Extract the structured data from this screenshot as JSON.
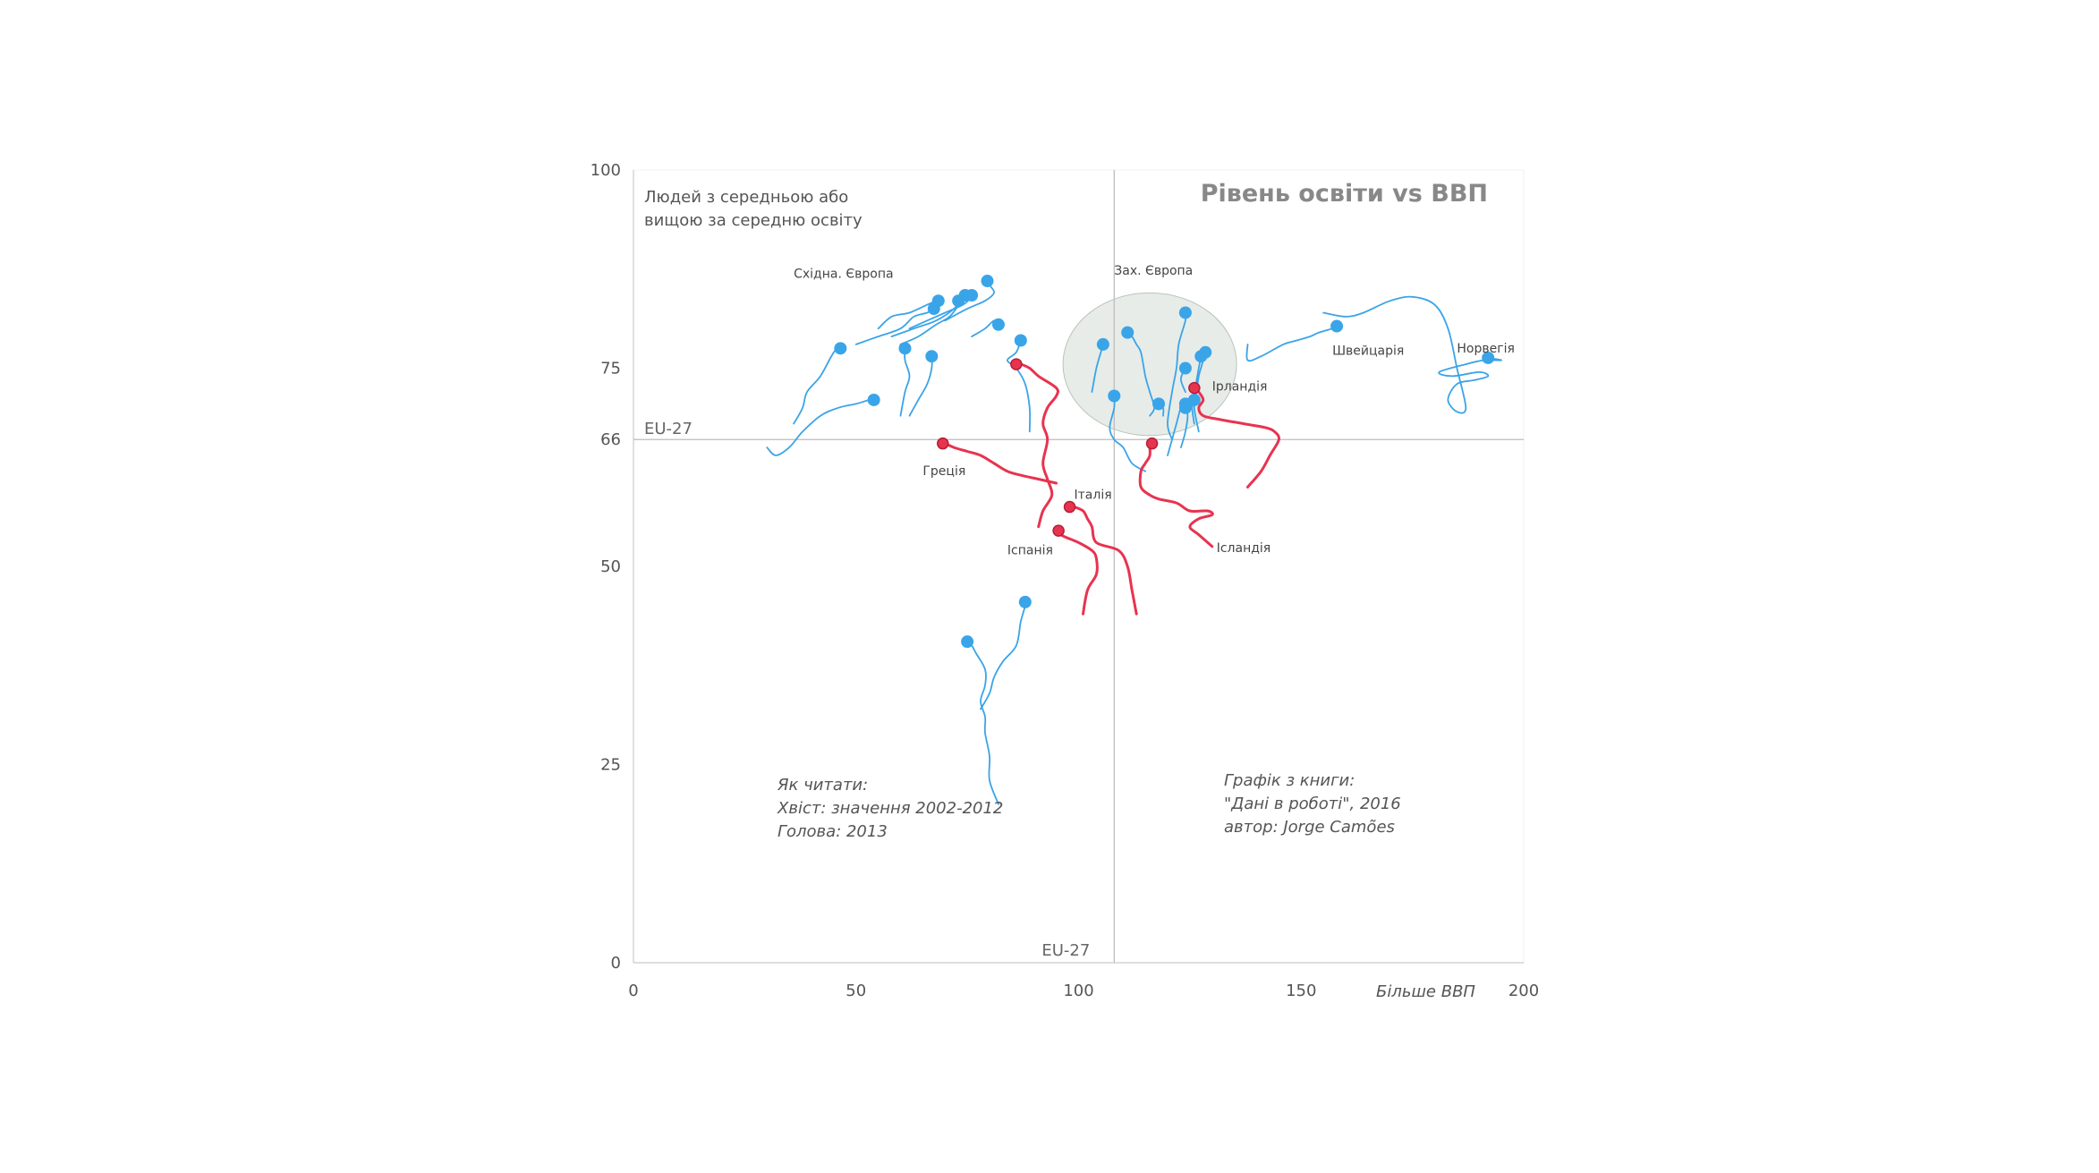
{
  "chart_data": {
    "type": "scatter",
    "title": "Рівень освіти vs ВВП",
    "ylabel_lines": [
      "Людей з  середньою або",
      "вищою за середню освіту"
    ],
    "xlabel": "Більше ВВП",
    "xlim": [
      0,
      200
    ],
    "ylim": [
      0,
      100
    ],
    "x_ticks": [
      0,
      50,
      100,
      150,
      200
    ],
    "y_ticks": [
      0,
      25,
      50,
      66,
      75,
      100
    ],
    "reference_lines": {
      "x": 108,
      "y": 66,
      "x_label": "EU-27",
      "y_label": "EU-27"
    },
    "grid": false,
    "colors": {
      "default": "#3aa4e8",
      "highlight": "#e8334f",
      "axis": "#cccccc",
      "cluster_fill": "#dfe6e0"
    },
    "cluster": {
      "label": "Зах. Європа",
      "center": [
        116,
        75.5
      ],
      "radius": [
        19.5,
        9
      ]
    },
    "region_labels": [
      {
        "text": "Східна. Європа",
        "x": 36,
        "y": 86.4
      },
      {
        "text": "Зах. Європа",
        "x": 108,
        "y": 86.8
      }
    ],
    "notes": {
      "reading": [
        "Як читати:",
        "Хвіст: значення 2002-2012",
        "Голова: 2013"
      ],
      "source": [
        "Графік з книги:",
        "\"Дані в роботі\", 2016",
        "автор: Jorge Camões"
      ]
    },
    "series": [
      {
        "name": "Греція",
        "highlight": true,
        "label_pos": [
          65,
          61.5
        ],
        "points": [
          [
            95,
            60.5
          ],
          [
            91,
            61
          ],
          [
            87,
            61.5
          ],
          [
            84,
            62
          ],
          [
            81,
            63
          ],
          [
            78,
            64
          ],
          [
            75,
            64.5
          ],
          [
            72,
            65
          ],
          [
            70,
            65.5
          ],
          [
            69.5,
            65.5
          ]
        ]
      },
      {
        "name": "Італія",
        "highlight": true,
        "label_pos": [
          99,
          58.5
        ],
        "points": [
          [
            91,
            55
          ],
          [
            92,
            57
          ],
          [
            94,
            59
          ],
          [
            93,
            61
          ],
          [
            92,
            63
          ],
          [
            93,
            66
          ],
          [
            92,
            68
          ],
          [
            93,
            70
          ],
          [
            95,
            71.5
          ],
          [
            95,
            72.5
          ],
          [
            91,
            74
          ],
          [
            89,
            75
          ],
          [
            87,
            75.5
          ],
          [
            86,
            75.5
          ]
        ]
      },
      {
        "name": "Іспанія",
        "highlight": true,
        "label_pos": [
          84,
          51.5
        ],
        "points": [
          [
            101,
            44
          ],
          [
            102,
            47
          ],
          [
            104,
            49
          ],
          [
            104,
            51
          ],
          [
            103,
            52
          ],
          [
            100,
            53
          ],
          [
            96,
            54
          ],
          [
            95,
            55
          ],
          [
            95.5,
            54.5
          ]
        ]
      },
      {
        "name": "",
        "highlight": true,
        "points": [
          [
            113,
            44
          ],
          [
            112,
            47
          ],
          [
            111,
            50
          ],
          [
            109,
            52
          ],
          [
            104,
            53
          ],
          [
            103,
            55
          ],
          [
            102,
            56
          ],
          [
            101,
            57
          ],
          [
            99,
            57.5
          ],
          [
            98,
            57.5
          ]
        ]
      },
      {
        "name": "Ірландія",
        "highlight": true,
        "label_pos": [
          130,
          72.2
        ],
        "points": [
          [
            138,
            60
          ],
          [
            141,
            62
          ],
          [
            143,
            64
          ],
          [
            145,
            66
          ],
          [
            144,
            67
          ],
          [
            142,
            67.5
          ],
          [
            137,
            68
          ],
          [
            132,
            68.5
          ],
          [
            128,
            69
          ],
          [
            127,
            70
          ],
          [
            128,
            71
          ],
          [
            127,
            72
          ],
          [
            126,
            72.5
          ]
        ]
      },
      {
        "name": "Ісландія",
        "highlight": true,
        "label_pos": [
          131,
          51.8
        ],
        "points": [
          [
            130,
            52.5
          ],
          [
            127,
            54
          ],
          [
            125,
            55
          ],
          [
            127,
            56
          ],
          [
            130,
            56.5
          ],
          [
            129,
            57
          ],
          [
            125,
            57
          ],
          [
            122,
            58
          ],
          [
            118,
            58.5
          ],
          [
            116,
            59
          ],
          [
            114,
            60
          ],
          [
            114,
            62
          ],
          [
            115,
            63
          ],
          [
            116,
            64
          ],
          [
            116,
            65.5
          ],
          [
            116.5,
            65.5
          ]
        ]
      },
      {
        "name": "Швейцарія",
        "highlight": false,
        "label_pos": [
          157,
          76.7
        ],
        "points": [
          [
            138,
            78
          ],
          [
            138,
            76
          ],
          [
            141,
            76.5
          ],
          [
            146,
            78
          ],
          [
            149,
            78.5
          ],
          [
            152,
            79
          ],
          [
            154,
            79.5
          ],
          [
            157,
            80
          ],
          [
            158,
            80.3
          ]
        ]
      },
      {
        "name": "Норвегія",
        "highlight": false,
        "label_pos": [
          185,
          77
        ],
        "points": [
          [
            155,
            82
          ],
          [
            160,
            81.5
          ],
          [
            164,
            82
          ],
          [
            170,
            83.5
          ],
          [
            175,
            84
          ],
          [
            180,
            83
          ],
          [
            183,
            80
          ],
          [
            185,
            75
          ],
          [
            187,
            70
          ],
          [
            185,
            69.5
          ],
          [
            183,
            71
          ],
          [
            185,
            73
          ],
          [
            189,
            73.5
          ],
          [
            192,
            74
          ],
          [
            190,
            74.5
          ],
          [
            184,
            74
          ],
          [
            181,
            74.5
          ],
          [
            187,
            75.5
          ],
          [
            191,
            76
          ],
          [
            195,
            76
          ],
          [
            192,
            76.3
          ]
        ]
      },
      {
        "name": "",
        "highlight": false,
        "points": [
          [
            116,
            69
          ],
          [
            117,
            70
          ],
          [
            116,
            72
          ],
          [
            115,
            74
          ],
          [
            114,
            77
          ],
          [
            113,
            78
          ],
          [
            112,
            79
          ],
          [
            111,
            79.5
          ]
        ]
      },
      {
        "name": "",
        "highlight": false,
        "points": [
          [
            115,
            62
          ],
          [
            112,
            63
          ],
          [
            110,
            65
          ],
          [
            108,
            66
          ],
          [
            107,
            67.5
          ],
          [
            108,
            70
          ],
          [
            108,
            71.5
          ]
        ]
      },
      {
        "name": "",
        "highlight": false,
        "points": [
          [
            103,
            72
          ],
          [
            104,
            75
          ],
          [
            105,
            77
          ],
          [
            105.5,
            78
          ]
        ]
      },
      {
        "name": "",
        "highlight": false,
        "points": [
          [
            121,
            66
          ],
          [
            120,
            68
          ],
          [
            121,
            72
          ],
          [
            122,
            75
          ],
          [
            122.5,
            78
          ],
          [
            124,
            81
          ],
          [
            124,
            82
          ]
        ]
      },
      {
        "name": "",
        "highlight": false,
        "points": [
          [
            119,
            69
          ],
          [
            119,
            70
          ],
          [
            118,
            70.5
          ]
        ]
      },
      {
        "name": "",
        "highlight": false,
        "points": [
          [
            124,
            72
          ],
          [
            123,
            73.5
          ],
          [
            123.5,
            74.5
          ],
          [
            124,
            75
          ]
        ]
      },
      {
        "name": "",
        "highlight": false,
        "points": [
          [
            126,
            68
          ],
          [
            125.5,
            70
          ],
          [
            126,
            71
          ]
        ]
      },
      {
        "name": "",
        "highlight": false,
        "points": [
          [
            123,
            65
          ],
          [
            124,
            67
          ],
          [
            124.5,
            69
          ],
          [
            124,
            70.5
          ]
        ]
      },
      {
        "name": "",
        "highlight": false,
        "points": [
          [
            127,
            67
          ],
          [
            126,
            70
          ],
          [
            126.5,
            72
          ],
          [
            127,
            74
          ],
          [
            128,
            76
          ],
          [
            128.5,
            77
          ]
        ]
      },
      {
        "name": "",
        "highlight": false,
        "points": [
          [
            125,
            70
          ],
          [
            126,
            72
          ],
          [
            127,
            75
          ],
          [
            127.5,
            76.5
          ]
        ]
      },
      {
        "name": "",
        "highlight": false,
        "points": [
          [
            120,
            64
          ],
          [
            121,
            66
          ],
          [
            122,
            68
          ],
          [
            123,
            70
          ],
          [
            124,
            70
          ]
        ]
      },
      {
        "name": "",
        "highlight": false,
        "points": [
          [
            30,
            65
          ],
          [
            32,
            64
          ],
          [
            35,
            65
          ],
          [
            38,
            67
          ],
          [
            42,
            69
          ],
          [
            46,
            70
          ],
          [
            50,
            70.5
          ],
          [
            53,
            71
          ],
          [
            54,
            71
          ]
        ]
      },
      {
        "name": "",
        "highlight": false,
        "points": [
          [
            36,
            68
          ],
          [
            38,
            70
          ],
          [
            39,
            72
          ],
          [
            42,
            74
          ],
          [
            45,
            77
          ],
          [
            47,
            78
          ],
          [
            46.5,
            77.5
          ]
        ]
      },
      {
        "name": "",
        "highlight": false,
        "points": [
          [
            60,
            69
          ],
          [
            61,
            72
          ],
          [
            62,
            74
          ],
          [
            61,
            76
          ],
          [
            61,
            77.5
          ]
        ]
      },
      {
        "name": "",
        "highlight": false,
        "points": [
          [
            62,
            69
          ],
          [
            64,
            71
          ],
          [
            66,
            73
          ],
          [
            67,
            75
          ],
          [
            67,
            76.5
          ]
        ]
      },
      {
        "name": "",
        "highlight": false,
        "points": [
          [
            50,
            78
          ],
          [
            55,
            79
          ],
          [
            60,
            80
          ],
          [
            63,
            81.5
          ],
          [
            66,
            82
          ],
          [
            67.5,
            82.5
          ]
        ]
      },
      {
        "name": "",
        "highlight": false,
        "points": [
          [
            55,
            80
          ],
          [
            58,
            81.5
          ],
          [
            62,
            82
          ],
          [
            66,
            83
          ],
          [
            68,
            83.5
          ],
          [
            68.5,
            83.5
          ]
        ]
      },
      {
        "name": "",
        "highlight": false,
        "points": [
          [
            60,
            78
          ],
          [
            64,
            79
          ],
          [
            68,
            80.5
          ],
          [
            71,
            81.5
          ],
          [
            73,
            83
          ],
          [
            73,
            83.5
          ]
        ]
      },
      {
        "name": "",
        "highlight": false,
        "points": [
          [
            58,
            79
          ],
          [
            63,
            80
          ],
          [
            68,
            81
          ],
          [
            72,
            82.5
          ],
          [
            74,
            84
          ],
          [
            74.5,
            84.2
          ]
        ]
      },
      {
        "name": "",
        "highlight": false,
        "points": [
          [
            62,
            80
          ],
          [
            66,
            81
          ],
          [
            70,
            82
          ],
          [
            74,
            83
          ],
          [
            76,
            84
          ],
          [
            76,
            84.2
          ]
        ]
      },
      {
        "name": "",
        "highlight": false,
        "points": [
          [
            70,
            81
          ],
          [
            75,
            82.5
          ],
          [
            79,
            83.5
          ],
          [
            81,
            84.5
          ],
          [
            80,
            85.5
          ],
          [
            79.5,
            86
          ]
        ]
      },
      {
        "name": "",
        "highlight": false,
        "points": [
          [
            76,
            79
          ],
          [
            79,
            80
          ],
          [
            81,
            81
          ],
          [
            82,
            80.5
          ]
        ]
      },
      {
        "name": "",
        "highlight": false,
        "points": [
          [
            89,
            67
          ],
          [
            89,
            70
          ],
          [
            88,
            73
          ],
          [
            86,
            75
          ],
          [
            84,
            76
          ],
          [
            86,
            77
          ],
          [
            87,
            78.5
          ]
        ]
      },
      {
        "name": "",
        "highlight": false,
        "points": [
          [
            82,
            20
          ],
          [
            80,
            23
          ],
          [
            80,
            26
          ],
          [
            79,
            29
          ],
          [
            79,
            31
          ],
          [
            78,
            33
          ],
          [
            79,
            35
          ],
          [
            79,
            37
          ],
          [
            77,
            39
          ],
          [
            76,
            40
          ],
          [
            75,
            40.5
          ]
        ]
      },
      {
        "name": "",
        "highlight": false,
        "points": [
          [
            78,
            32
          ],
          [
            80,
            34
          ],
          [
            81,
            36
          ],
          [
            83,
            38
          ],
          [
            86,
            40
          ],
          [
            87,
            43
          ],
          [
            88,
            45
          ],
          [
            88,
            45.5
          ]
        ]
      }
    ]
  }
}
